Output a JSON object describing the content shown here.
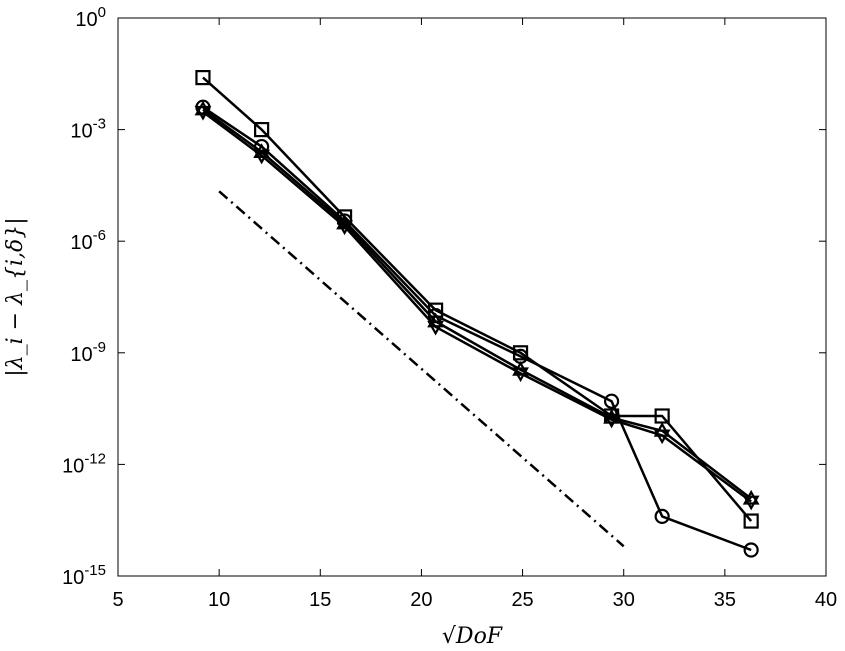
{
  "chart_data": {
    "type": "line",
    "xlabel": "√DoF",
    "ylabel": "|λ_i − λ_{i,δ}|",
    "xlim": [
      5,
      40
    ],
    "ylim_log10": [
      -15,
      0
    ],
    "yscale": "log",
    "x_ticks": [
      5,
      10,
      15,
      20,
      25,
      30,
      35,
      40
    ],
    "x_tick_labels": [
      "5",
      "10",
      "15",
      "20",
      "25",
      "30",
      "35",
      "40"
    ],
    "y_tick_labels": [
      {
        "base": "10",
        "exp": "-15"
      },
      {
        "base": "10",
        "exp": "-12"
      },
      {
        "base": "10",
        "exp": "-9"
      },
      {
        "base": "10",
        "exp": "-6"
      },
      {
        "base": "10",
        "exp": "-3"
      },
      {
        "base": "10",
        "exp": "0"
      }
    ],
    "grid": false,
    "legend": "none",
    "series": [
      {
        "marker": "square",
        "color": "#000000",
        "x": [
          9.2,
          12.1,
          16.2,
          20.7,
          24.9,
          29.4,
          31.9,
          36.3
        ],
        "y": [
          0.025,
          0.001,
          4.5e-06,
          1.4e-08,
          1e-09,
          2e-11,
          2e-11,
          3e-14
        ]
      },
      {
        "marker": "circle",
        "color": "#000000",
        "x": [
          9.2,
          12.1,
          16.2,
          20.7,
          24.9,
          29.4,
          31.9,
          36.3
        ],
        "y": [
          0.004,
          0.00035,
          3.5e-06,
          1e-08,
          8e-10,
          5e-11,
          4e-14,
          5e-15
        ]
      },
      {
        "marker": "triangle-up",
        "color": "#000000",
        "x": [
          9.2,
          12.1,
          16.2,
          20.7,
          24.9,
          29.4,
          31.9,
          36.3
        ],
        "y": [
          0.0035,
          0.00025,
          3e-06,
          7e-09,
          3.5e-10,
          1.8e-11,
          8e-12,
          1.2e-13
        ]
      },
      {
        "marker": "triangle-down",
        "color": "#000000",
        "x": [
          9.2,
          12.1,
          16.2,
          20.7,
          24.9,
          29.4,
          31.9,
          36.3
        ],
        "y": [
          0.003,
          0.0002,
          2.5e-06,
          5e-09,
          2.8e-10,
          1.6e-11,
          6e-12,
          1e-13
        ]
      }
    ],
    "reference_line": {
      "style": "dash-dot",
      "x": [
        10,
        30
      ],
      "y": [
        2.2e-05,
        6.3e-15
      ]
    }
  }
}
